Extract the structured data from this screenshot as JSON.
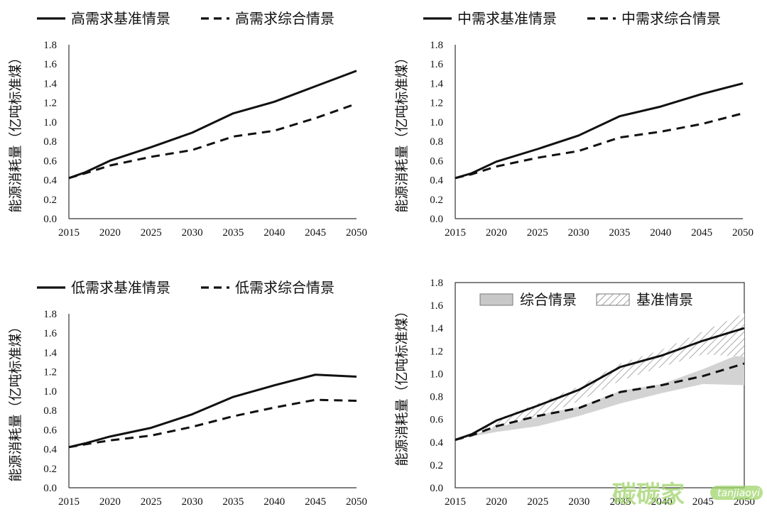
{
  "chart_data": [
    {
      "type": "line",
      "ylabel": "能源消耗量（亿吨标准煤）",
      "ylim": [
        0,
        1.8
      ],
      "yticks": [
        "0.0",
        "0.2",
        "0.4",
        "0.6",
        "0.8",
        "1.0",
        "1.2",
        "1.4",
        "1.6",
        "1.8"
      ],
      "xticks": [
        "2015",
        "2020",
        "2025",
        "2030",
        "2035",
        "2040",
        "2045",
        "2050"
      ],
      "legend_position": "top",
      "series": [
        {
          "name": "高需求基准情景",
          "style": "solid",
          "x": [
            2015,
            2017,
            2020,
            2025,
            2030,
            2035,
            2040,
            2045,
            2050
          ],
          "values": [
            0.42,
            0.48,
            0.6,
            0.74,
            0.89,
            1.09,
            1.21,
            1.37,
            1.53
          ]
        },
        {
          "name": "高需求综合情景",
          "style": "dashed",
          "x": [
            2015,
            2017,
            2020,
            2025,
            2030,
            2035,
            2040,
            2045,
            2050
          ],
          "values": [
            0.42,
            0.47,
            0.55,
            0.64,
            0.71,
            0.85,
            0.91,
            1.04,
            1.19
          ]
        }
      ]
    },
    {
      "type": "line",
      "ylabel": "能源消耗量（亿吨标准煤）",
      "ylim": [
        0,
        1.8
      ],
      "yticks": [
        "0.0",
        "0.2",
        "0.4",
        "0.6",
        "0.8",
        "1.0",
        "1.2",
        "1.4",
        "1.6",
        "1.8"
      ],
      "xticks": [
        "2015",
        "2020",
        "2025",
        "2030",
        "2035",
        "2040",
        "2045",
        "2050"
      ],
      "legend_position": "top",
      "series": [
        {
          "name": "中需求基准情景",
          "style": "solid",
          "x": [
            2015,
            2017,
            2020,
            2025,
            2030,
            2035,
            2040,
            2045,
            2050
          ],
          "values": [
            0.42,
            0.47,
            0.59,
            0.72,
            0.86,
            1.06,
            1.16,
            1.29,
            1.4
          ]
        },
        {
          "name": "中需求综合情景",
          "style": "dashed",
          "x": [
            2015,
            2017,
            2020,
            2025,
            2030,
            2035,
            2040,
            2045,
            2050
          ],
          "values": [
            0.42,
            0.46,
            0.54,
            0.63,
            0.7,
            0.84,
            0.9,
            0.98,
            1.09
          ]
        }
      ]
    },
    {
      "type": "line",
      "ylabel": "能源消耗量（亿吨标准煤）",
      "ylim": [
        0,
        1.8
      ],
      "yticks": [
        "0.0",
        "0.2",
        "0.4",
        "0.6",
        "0.8",
        "1.0",
        "1.2",
        "1.4",
        "1.6",
        "1.8"
      ],
      "xticks": [
        "2015",
        "2020",
        "2025",
        "2030",
        "2035",
        "2040",
        "2045",
        "2050"
      ],
      "legend_position": "top",
      "series": [
        {
          "name": "低需求基准情景",
          "style": "solid",
          "x": [
            2015,
            2017,
            2020,
            2025,
            2030,
            2035,
            2040,
            2045,
            2050
          ],
          "values": [
            0.42,
            0.46,
            0.53,
            0.62,
            0.76,
            0.94,
            1.06,
            1.17,
            1.15
          ]
        },
        {
          "name": "低需求综合情景",
          "style": "dashed",
          "x": [
            2015,
            2017,
            2020,
            2025,
            2030,
            2035,
            2040,
            2045,
            2050
          ],
          "values": [
            0.42,
            0.45,
            0.49,
            0.54,
            0.63,
            0.74,
            0.83,
            0.91,
            0.9
          ]
        }
      ]
    },
    {
      "type": "area",
      "ylabel": "能源消耗量（亿吨标准煤）",
      "ylim": [
        0,
        1.8
      ],
      "yticks": [
        "0.0",
        "0.2",
        "0.4",
        "0.6",
        "0.8",
        "1.0",
        "1.2",
        "1.4",
        "1.6",
        "1.8"
      ],
      "xticks": [
        "2015",
        "2020",
        "2025",
        "2030",
        "2035",
        "2040",
        "2045",
        "2050"
      ],
      "legend_position": "top",
      "bands": [
        {
          "name": "综合情景",
          "fill": "solid-gray",
          "x": [
            2015,
            2017,
            2020,
            2025,
            2030,
            2035,
            2040,
            2045,
            2050
          ],
          "upper": [
            0.42,
            0.47,
            0.55,
            0.64,
            0.71,
            0.85,
            0.91,
            1.04,
            1.19
          ],
          "lower": [
            0.42,
            0.45,
            0.49,
            0.54,
            0.63,
            0.74,
            0.83,
            0.91,
            0.9
          ]
        },
        {
          "name": "基准情景",
          "fill": "hatched",
          "x": [
            2015,
            2017,
            2020,
            2025,
            2030,
            2035,
            2040,
            2045,
            2050
          ],
          "upper": [
            0.42,
            0.48,
            0.6,
            0.74,
            0.89,
            1.09,
            1.21,
            1.37,
            1.53
          ],
          "lower": [
            0.42,
            0.46,
            0.53,
            0.62,
            0.76,
            0.94,
            1.06,
            1.17,
            1.15
          ]
        }
      ],
      "series": [
        {
          "style": "solid",
          "x": [
            2015,
            2017,
            2020,
            2025,
            2030,
            2035,
            2040,
            2045,
            2050
          ],
          "values": [
            0.42,
            0.47,
            0.59,
            0.72,
            0.86,
            1.06,
            1.16,
            1.29,
            1.4
          ]
        },
        {
          "style": "dashed",
          "x": [
            2015,
            2017,
            2020,
            2025,
            2030,
            2035,
            2040,
            2045,
            2050
          ],
          "values": [
            0.42,
            0.46,
            0.54,
            0.63,
            0.7,
            0.84,
            0.9,
            0.98,
            1.09
          ]
        }
      ]
    }
  ],
  "watermark": {
    "text": "碳碳家",
    "subtext": "tanjiaoyi"
  },
  "colors": {
    "line": "#111111",
    "band_gray": "#cfcfcf",
    "hatch": "#8a8a8a",
    "watermark": "#9fd46b"
  }
}
